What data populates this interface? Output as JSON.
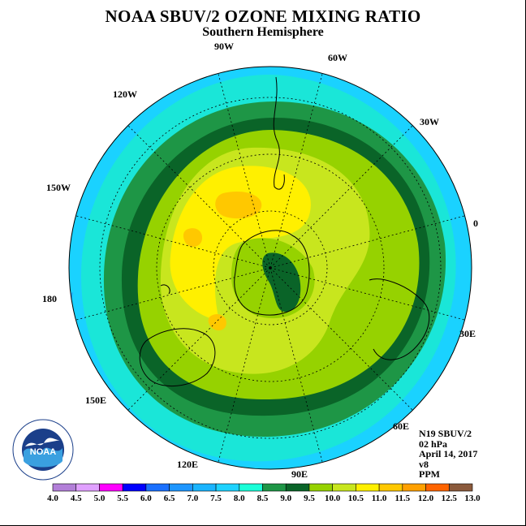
{
  "title": "NOAA SBUV/2 OZONE MIXING RATIO",
  "subtitle": "Southern Hemisphere",
  "longitude_labels": [
    "90W",
    "60W",
    "30W",
    "0",
    "30E",
    "60E",
    "90E",
    "120E",
    "150E",
    "180",
    "150W",
    "120W"
  ],
  "info": {
    "satellite": "N19 SBUV/2",
    "level": "02 hPa",
    "date": "April 14, 2017",
    "version": "v8",
    "units": "PPM"
  },
  "logo": {
    "text": "NOAA",
    "ring_text": "NATIONAL OCEANIC AND ATMOSPHERIC ADMINISTRATION",
    "bottom_text": "U.S. DEPARTMENT OF COMMERCE"
  },
  "colorbar": {
    "ticks": [
      "4.0",
      "4.5",
      "5.0",
      "5.5",
      "6.0",
      "6.5",
      "7.0",
      "7.5",
      "8.0",
      "8.5",
      "9.0",
      "9.5",
      "10.0",
      "10.5",
      "11.0",
      "11.5",
      "12.0",
      "12.5",
      "13.0"
    ],
    "colors": [
      "#b27fd8",
      "#e0a0ff",
      "#ff00ff",
      "#0000ff",
      "#1a70ff",
      "#1e96ff",
      "#1ab4ff",
      "#1ed2ff",
      "#1affd8",
      "#1e9646",
      "#0a6428",
      "#96d200",
      "#c8e61e",
      "#fff000",
      "#ffc800",
      "#ffa000",
      "#ff6400",
      "#ff0000",
      "#8b5a3c"
    ]
  },
  "colors": {
    "outer_ring": "#1ad2ff",
    "ring_75": "#1ae6d8",
    "ring_85": "#1e9646",
    "ring_9": "#0a6428",
    "core_95": "#96d200",
    "core_10": "#c8e61e",
    "core_105": "#fff000",
    "core_11": "#ffc800"
  }
}
